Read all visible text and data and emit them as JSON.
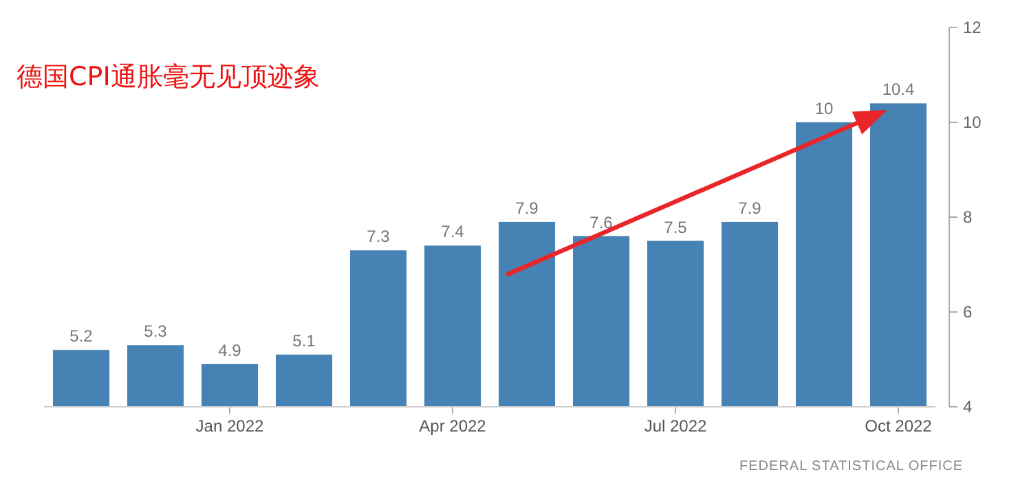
{
  "chart_data": {
    "type": "bar",
    "title": "德国CPI通胀毫无见顶迹象",
    "categories": [
      null,
      null,
      "Jan 2022",
      null,
      null,
      "Apr 2022",
      null,
      null,
      "Jul 2022",
      null,
      null,
      "Oct 2022"
    ],
    "values": [
      5.2,
      5.3,
      4.9,
      5.1,
      7.3,
      7.4,
      7.9,
      7.6,
      7.5,
      7.9,
      10,
      10.4
    ],
    "color": "#4682b4",
    "ylim": [
      4,
      12
    ],
    "yticks": [
      4,
      6,
      8,
      10,
      12
    ],
    "data_labels": true,
    "annotations": [
      "FEDERAL STATISTICAL OFFICE"
    ]
  }
}
